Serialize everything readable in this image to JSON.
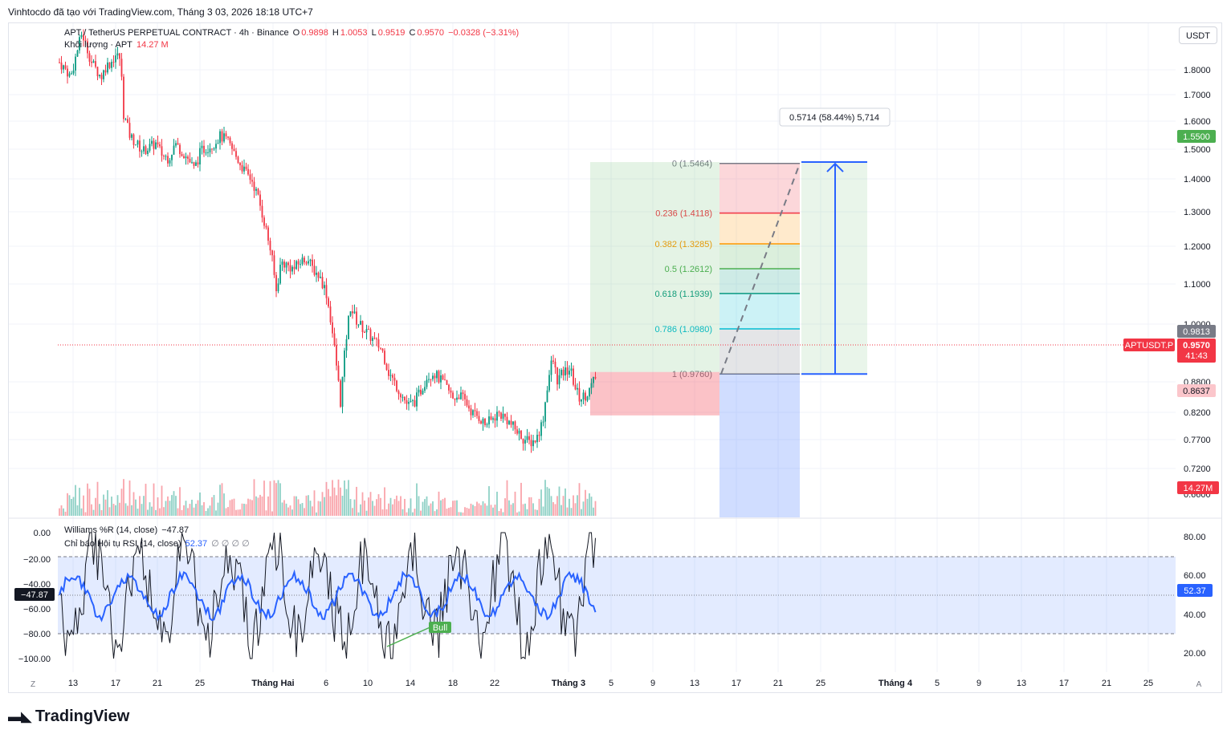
{
  "header": {
    "text": "Vinhtocdo đã tạo với TradingView.com, Tháng 3 03, 2026 18:18 UTC+7"
  },
  "legend": {
    "symbol_line": "APT / TetherUS PERPETUAL CONTRACT · 4h · Binance",
    "o_label": "O",
    "o_value": "0.9898",
    "h_label": "H",
    "h_value": "1.0053",
    "l_label": "L",
    "l_value": "0.9519",
    "c_label": "C",
    "c_value": "0.9570",
    "change": "−0.0328 (−3.31%)",
    "volume_label": "Khối lượng · APT",
    "volume_value": "14.27 M"
  },
  "indicator_legend": {
    "williams": "Williams %R (14, close)",
    "williams_value": "−47.87",
    "rsi": "Chỉ báo Hội tụ RSI (14, close)",
    "rsi_value": "52.37",
    "rsi_extra": "∅ ∅ ∅ ∅"
  },
  "currency_button": "USDT",
  "price_axis": {
    "labels": [
      "1.8000",
      "1.7000",
      "1.6000",
      "1.5000",
      "1.4000",
      "1.3000",
      "1.2000",
      "1.1000",
      "1.0000",
      "0.8800",
      "0.8200",
      "0.7700",
      "0.7200",
      "0.6600"
    ]
  },
  "price_tags": {
    "target": "1.5500",
    "entry": "0.9813",
    "last": "0.9570",
    "countdown": "41:43",
    "stop": "0.8637",
    "volume": "14.27M",
    "symbol_badge": "APTUSDT.P"
  },
  "indicator_left_axis": [
    "0.00",
    "−20.00",
    "−40.00",
    "−60.00",
    "−80.00",
    "−100.00"
  ],
  "indicator_left_tag": "−47.87",
  "indicator_right_axis": [
    "80.00",
    "60.00",
    "40.00",
    "20.00"
  ],
  "indicator_right_tag": "52.37",
  "time_axis": [
    {
      "label": "13",
      "bold": false
    },
    {
      "label": "17",
      "bold": false
    },
    {
      "label": "21",
      "bold": false
    },
    {
      "label": "25",
      "bold": false
    },
    {
      "label": "Tháng Hai",
      "bold": true
    },
    {
      "label": "6",
      "bold": false
    },
    {
      "label": "10",
      "bold": false
    },
    {
      "label": "14",
      "bold": false
    },
    {
      "label": "18",
      "bold": false
    },
    {
      "label": "22",
      "bold": false
    },
    {
      "label": "Tháng 3",
      "bold": true
    },
    {
      "label": "5",
      "bold": false
    },
    {
      "label": "9",
      "bold": false
    },
    {
      "label": "13",
      "bold": false
    },
    {
      "label": "17",
      "bold": false
    },
    {
      "label": "21",
      "bold": false
    },
    {
      "label": "25",
      "bold": false
    },
    {
      "label": "Tháng 4",
      "bold": true
    },
    {
      "label": "5",
      "bold": false
    },
    {
      "label": "9",
      "bold": false
    },
    {
      "label": "13",
      "bold": false
    },
    {
      "label": "17",
      "bold": false
    },
    {
      "label": "21",
      "bold": false
    },
    {
      "label": "25",
      "bold": false
    }
  ],
  "fib_levels": [
    {
      "label": "0 (1.5464)",
      "price": 1.5464,
      "color": "#787b86"
    },
    {
      "label": "0.236 (1.4118)",
      "price": 1.4118,
      "color": "#f23645"
    },
    {
      "label": "0.382 (1.3285)",
      "price": 1.3285,
      "color": "#ff9800"
    },
    {
      "label": "0.5 (1.2612)",
      "price": 1.2612,
      "color": "#4caf50"
    },
    {
      "label": "0.618 (1.1939)",
      "price": 1.1939,
      "color": "#089981"
    },
    {
      "label": "0.786 (1.0980)",
      "price": 1.098,
      "color": "#00bcd4"
    },
    {
      "label": "1 (0.9760)",
      "price": 0.976,
      "color": "#787b86"
    }
  ],
  "measure_tooltip": "0.5714 (58.44%) 5,714",
  "divergence_label": "Bull",
  "corner_left": "Z",
  "corner_right": "A",
  "logo_text": "TradingView",
  "colors": {
    "up": "#089981",
    "down": "#f23645",
    "williams": "#131722",
    "rsi": "#2962ff",
    "accent": "#2962ff"
  },
  "chart_data": {
    "type": "candlestick",
    "symbol": "APTUSDT.P",
    "timeframe": "4h",
    "ohlc_last": {
      "open": 0.9898,
      "high": 1.0053,
      "low": 0.9519,
      "close": 0.957
    },
    "price_path": [
      [
        0,
        1.82
      ],
      [
        8,
        1.8
      ],
      [
        14,
        1.78
      ],
      [
        22,
        1.85
      ],
      [
        28,
        1.9
      ],
      [
        34,
        1.86
      ],
      [
        40,
        1.82
      ],
      [
        46,
        1.8
      ],
      [
        52,
        1.78
      ],
      [
        58,
        1.81
      ],
      [
        64,
        1.82
      ],
      [
        70,
        1.84
      ],
      [
        76,
        1.83
      ],
      [
        80,
        1.68
      ],
      [
        88,
        1.62
      ],
      [
        96,
        1.6
      ],
      [
        104,
        1.58
      ],
      [
        112,
        1.59
      ],
      [
        120,
        1.6
      ],
      [
        128,
        1.57
      ],
      [
        136,
        1.56
      ],
      [
        144,
        1.6
      ],
      [
        152,
        1.58
      ],
      [
        160,
        1.56
      ],
      [
        168,
        1.53
      ],
      [
        176,
        1.58
      ],
      [
        184,
        1.59
      ],
      [
        192,
        1.6
      ],
      [
        200,
        1.62
      ],
      [
        208,
        1.61
      ],
      [
        216,
        1.58
      ],
      [
        224,
        1.55
      ],
      [
        232,
        1.52
      ],
      [
        240,
        1.5
      ],
      [
        248,
        1.45
      ],
      [
        256,
        1.38
      ],
      [
        264,
        1.3
      ],
      [
        270,
        1.2
      ],
      [
        276,
        1.28
      ],
      [
        284,
        1.27
      ],
      [
        292,
        1.26
      ],
      [
        300,
        1.28
      ],
      [
        308,
        1.29
      ],
      [
        316,
        1.26
      ],
      [
        324,
        1.24
      ],
      [
        332,
        1.2
      ],
      [
        338,
        1.12
      ],
      [
        344,
        1.02
      ],
      [
        350,
        0.9
      ],
      [
        356,
        1.05
      ],
      [
        362,
        1.16
      ],
      [
        370,
        1.12
      ],
      [
        378,
        1.1
      ],
      [
        386,
        1.08
      ],
      [
        394,
        1.06
      ],
      [
        402,
        1.04
      ],
      [
        410,
        0.98
      ],
      [
        418,
        0.95
      ],
      [
        426,
        0.92
      ],
      [
        434,
        0.89
      ],
      [
        442,
        0.9
      ],
      [
        450,
        0.93
      ],
      [
        458,
        0.97
      ],
      [
        466,
        0.98
      ],
      [
        474,
        0.96
      ],
      [
        482,
        0.94
      ],
      [
        490,
        0.91
      ],
      [
        498,
        0.92
      ],
      [
        506,
        0.9
      ],
      [
        514,
        0.87
      ],
      [
        522,
        0.86
      ],
      [
        530,
        0.84
      ],
      [
        538,
        0.85
      ],
      [
        546,
        0.87
      ],
      [
        554,
        0.86
      ],
      [
        562,
        0.84
      ],
      [
        570,
        0.82
      ],
      [
        578,
        0.8
      ],
      [
        586,
        0.79
      ],
      [
        594,
        0.8
      ],
      [
        602,
        0.85
      ],
      [
        608,
        0.95
      ],
      [
        614,
        1.02
      ],
      [
        620,
        0.96
      ],
      [
        628,
        0.98
      ],
      [
        636,
        0.99
      ],
      [
        642,
        0.94
      ],
      [
        648,
        0.91
      ],
      [
        656,
        0.92
      ],
      [
        662,
        0.94
      ],
      [
        668,
        0.97
      ]
    ],
    "williams_r_range": [
      -100,
      0
    ],
    "rsi_range": [
      20,
      80
    ],
    "rsi_band": [
      30,
      70
    ],
    "fib_retracement": {
      "high": 1.5464,
      "low": 0.976
    },
    "long_position": {
      "entry": 0.9813,
      "target": 1.55,
      "stop": 0.8637
    }
  }
}
